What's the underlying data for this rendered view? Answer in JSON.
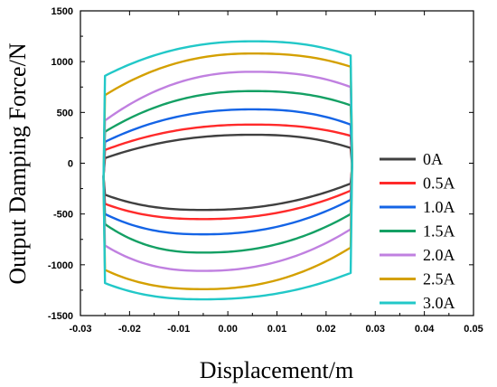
{
  "chart_data": {
    "type": "line",
    "xlabel": "Displacement/m",
    "ylabel": "Output Damping Force/N",
    "xlim": [
      -0.03,
      0.05
    ],
    "ylim": [
      -1500,
      1500
    ],
    "xticks": [
      "-0.03",
      "-0.02",
      "-0.01",
      "0.00",
      "0.01",
      "0.02",
      "0.03",
      "0.04",
      "0.05"
    ],
    "yticks": [
      "1500",
      "1000",
      "500",
      "0",
      "-500",
      "-1000",
      "-1500"
    ],
    "amplitude": 0.025,
    "legend_position": "right",
    "series": [
      {
        "name": "0A",
        "color": "#404040",
        "upper_peak": 280,
        "lower_peak": -460,
        "start_upper": 50,
        "end_upper": 150,
        "start_lower": -310,
        "end_lower": -200
      },
      {
        "name": "0.5A",
        "color": "#ff2a2a",
        "upper_peak": 380,
        "lower_peak": -550,
        "start_upper": 130,
        "end_upper": 270,
        "start_lower": -400,
        "end_lower": -270
      },
      {
        "name": "1.0A",
        "color": "#1464e6",
        "upper_peak": 530,
        "lower_peak": -700,
        "start_upper": 210,
        "end_upper": 380,
        "start_lower": -500,
        "end_lower": -360
      },
      {
        "name": "1.5A",
        "color": "#14a064",
        "upper_peak": 710,
        "lower_peak": -880,
        "start_upper": 310,
        "end_upper": 570,
        "start_lower": -600,
        "end_lower": -500
      },
      {
        "name": "2.0A",
        "color": "#c080e0",
        "upper_peak": 900,
        "lower_peak": -1060,
        "start_upper": 420,
        "end_upper": 750,
        "start_lower": -810,
        "end_lower": -650
      },
      {
        "name": "2.5A",
        "color": "#d4a000",
        "upper_peak": 1080,
        "lower_peak": -1240,
        "start_upper": 670,
        "end_upper": 950,
        "start_lower": -1050,
        "end_lower": -830
      },
      {
        "name": "3.0A",
        "color": "#22c8c8",
        "upper_peak": 1200,
        "lower_peak": -1340,
        "start_upper": 860,
        "end_upper": 1060,
        "start_lower": -1180,
        "end_lower": -1080
      }
    ]
  }
}
